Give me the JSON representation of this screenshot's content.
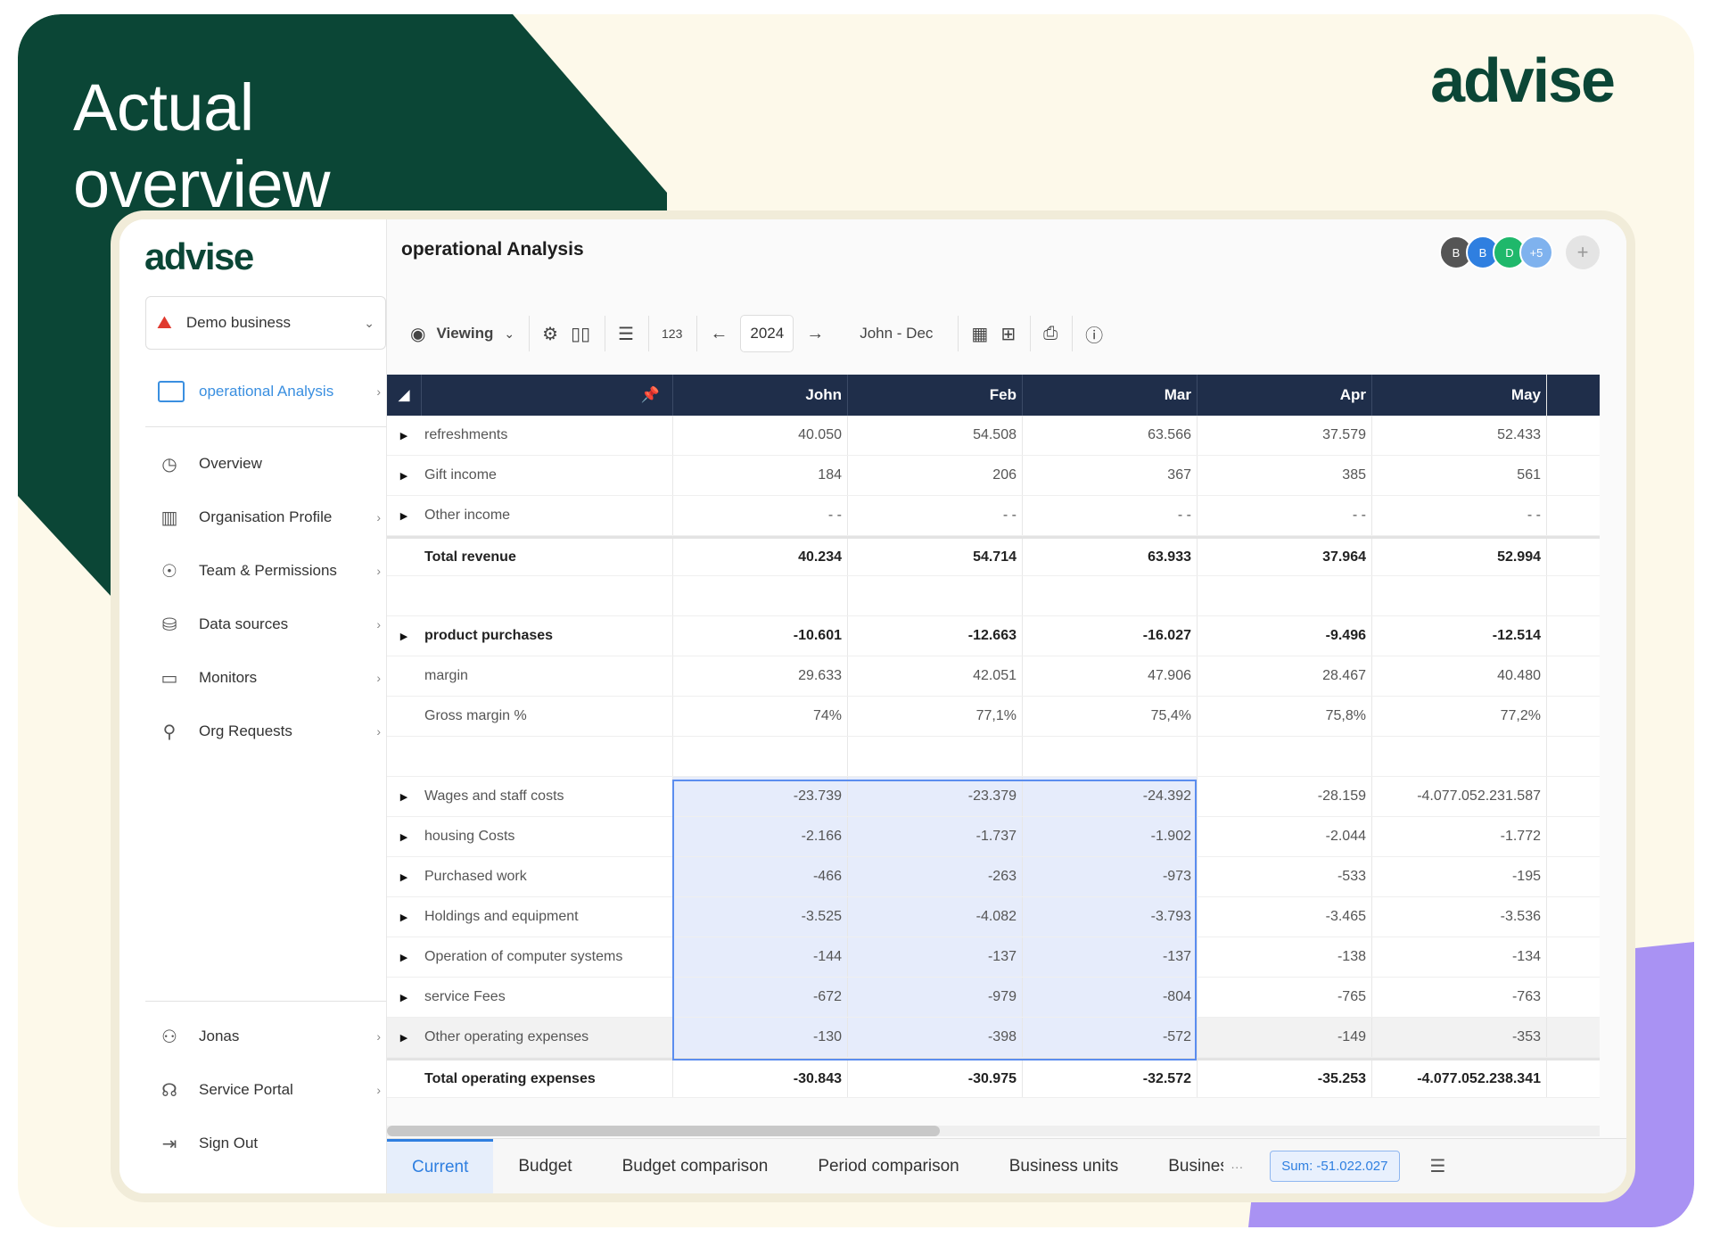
{
  "hero": {
    "title_line1": "Actual",
    "title_line2": "overview",
    "logo": "advise"
  },
  "sidebar": {
    "logo": "advise",
    "business": {
      "name": "Demo business",
      "icon": "business-logo-icon"
    },
    "active_item": {
      "label": "operational Analysis",
      "icon": "monitor-chart-icon"
    },
    "items": [
      {
        "label": "Overview",
        "icon": "gauge-icon",
        "chevron": false
      },
      {
        "label": "Organisation Profile",
        "icon": "building-icon",
        "chevron": true
      },
      {
        "label": "Team & Permissions",
        "icon": "fingerprint-icon",
        "chevron": true
      },
      {
        "label": "Data sources",
        "icon": "database-icon",
        "chevron": true
      },
      {
        "label": "Monitors",
        "icon": "monitor-icon",
        "chevron": true
      },
      {
        "label": "Org Requests",
        "icon": "user-plus-icon",
        "chevron": true
      }
    ],
    "bottom_items": [
      {
        "label": "Jonas",
        "icon": "user-icon",
        "chevron": true
      },
      {
        "label": "Service Portal",
        "icon": "headset-icon",
        "chevron": true
      },
      {
        "label": "Sign Out",
        "icon": "sign-out-icon",
        "chevron": false
      }
    ]
  },
  "header": {
    "title": "operational Analysis",
    "avatars": [
      {
        "initial": "B",
        "color": "#555555"
      },
      {
        "initial": "B",
        "color": "#2f7fe0"
      },
      {
        "initial": "D",
        "color": "#1fb86b"
      },
      {
        "initial": "+5",
        "color": "#7fb2ee"
      }
    ],
    "add_icon": "plus-icon"
  },
  "toolbar": {
    "view_label": "Viewing",
    "number_format": "123",
    "year": "2024",
    "period": "John - Dec"
  },
  "grid": {
    "columns": [
      "John",
      "Feb",
      "Mar",
      "Apr",
      "May"
    ],
    "rows": [
      {
        "label": "refreshments",
        "values": [
          "40.050",
          "54.508",
          "63.566",
          "37.579",
          "52.433"
        ],
        "expandable": true,
        "bold": false
      },
      {
        "label": "Gift income",
        "values": [
          "184",
          "206",
          "367",
          "385",
          "561"
        ],
        "expandable": true,
        "bold": false
      },
      {
        "label": "Other income",
        "values": [
          "- -",
          "- -",
          "- -",
          "- -",
          "- -"
        ],
        "expandable": true,
        "bold": false
      },
      {
        "label": "Total revenue",
        "values": [
          "40.234",
          "54.714",
          "63.933",
          "37.964",
          "52.994"
        ],
        "expandable": false,
        "bold": true,
        "thick": true
      },
      {
        "label": "",
        "values": [
          "",
          "",
          "",
          "",
          ""
        ],
        "expandable": false,
        "bold": false
      },
      {
        "label": "product purchases",
        "values": [
          "-10.601",
          "-12.663",
          "-16.027",
          "-9.496",
          "-12.514"
        ],
        "expandable": true,
        "bold": true
      },
      {
        "label": "margin",
        "values": [
          "29.633",
          "42.051",
          "47.906",
          "28.467",
          "40.480"
        ],
        "expandable": false,
        "bold": false
      },
      {
        "label": "Gross margin %",
        "values": [
          "74%",
          "77,1%",
          "75,4%",
          "75,8%",
          "77,2%"
        ],
        "expandable": false,
        "bold": false
      },
      {
        "label": "",
        "values": [
          "",
          "",
          "",
          "",
          ""
        ],
        "expandable": false,
        "bold": false
      },
      {
        "label": "Wages and staff costs",
        "values": [
          "-23.739",
          "-23.379",
          "-24.392",
          "-28.159",
          "-4.077.052.231.587"
        ],
        "expandable": true,
        "bold": false,
        "sel": true
      },
      {
        "label": "housing Costs",
        "values": [
          "-2.166",
          "-1.737",
          "-1.902",
          "-2.044",
          "-1.772"
        ],
        "expandable": true,
        "bold": false,
        "sel": true
      },
      {
        "label": "Purchased work",
        "values": [
          "-466",
          "-263",
          "-973",
          "-533",
          "-195"
        ],
        "expandable": true,
        "bold": false,
        "sel": true
      },
      {
        "label": "Holdings and equipment",
        "values": [
          "-3.525",
          "-4.082",
          "-3.793",
          "-3.465",
          "-3.536"
        ],
        "expandable": true,
        "bold": false,
        "sel": true
      },
      {
        "label": "Operation of computer systems",
        "values": [
          "-144",
          "-137",
          "-137",
          "-138",
          "-134"
        ],
        "expandable": true,
        "bold": false,
        "sel": true
      },
      {
        "label": "service Fees",
        "values": [
          "-672",
          "-979",
          "-804",
          "-765",
          "-763"
        ],
        "expandable": true,
        "bold": false,
        "sel": true
      },
      {
        "label": "Other operating expenses",
        "values": [
          "-130",
          "-398",
          "-572",
          "-149",
          "-353"
        ],
        "expandable": true,
        "bold": false,
        "sel": true,
        "hl": true
      },
      {
        "label": "Total operating expenses",
        "values": [
          "-30.843",
          "-30.975",
          "-32.572",
          "-35.253",
          "-4.077.052.238.341"
        ],
        "expandable": false,
        "bold": true,
        "thick": true
      }
    ]
  },
  "tabs": [
    {
      "label": "Current",
      "active": true
    },
    {
      "label": "Budget",
      "active": false
    },
    {
      "label": "Budget comparison",
      "active": false
    },
    {
      "label": "Period comparison",
      "active": false
    },
    {
      "label": "Business units",
      "active": false
    },
    {
      "label": "Business",
      "active": false,
      "cut": true
    }
  ],
  "more_label": "···",
  "sum": "Sum: -51.022.027"
}
